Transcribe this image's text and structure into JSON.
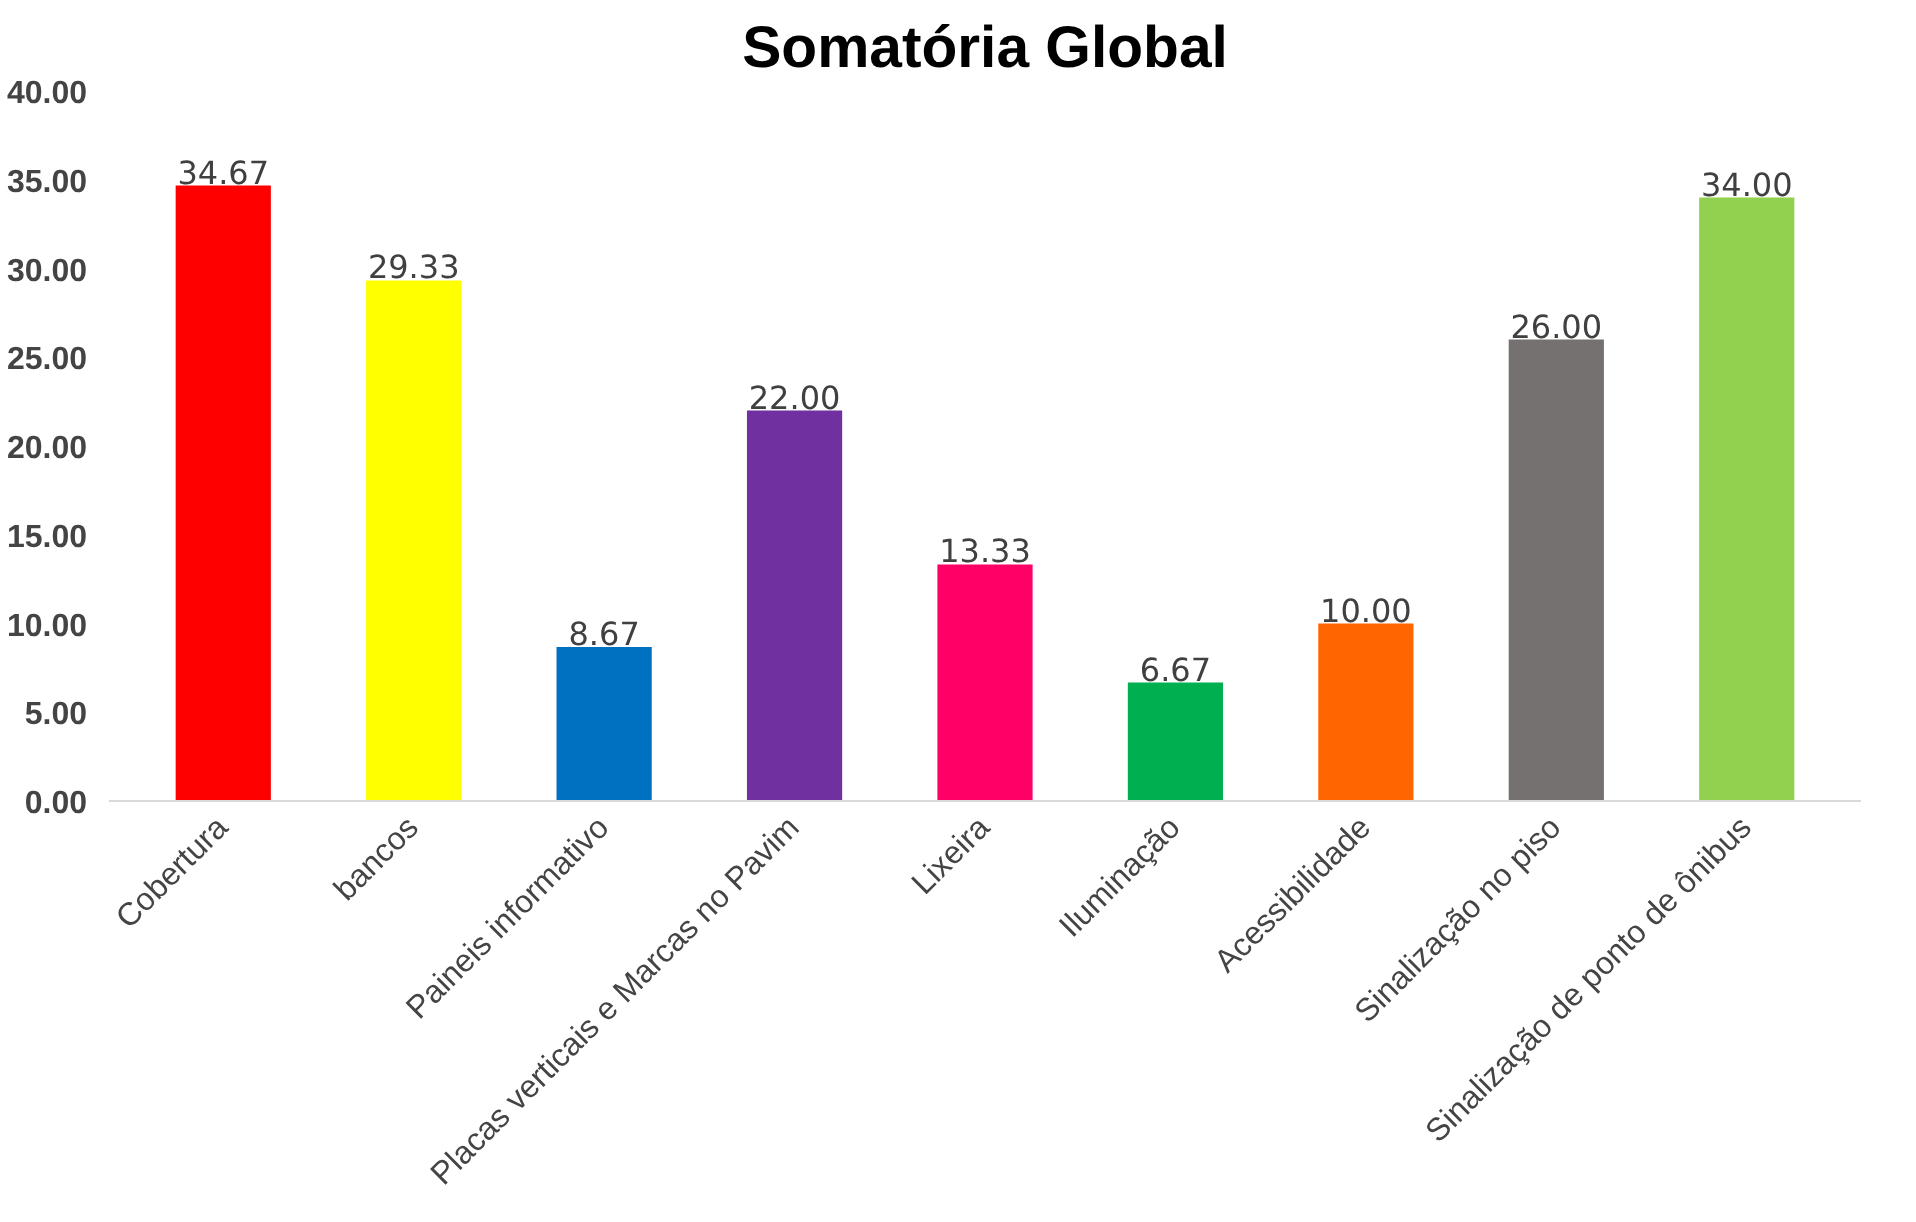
{
  "chart_data": {
    "type": "bar",
    "title": "Somatória Global",
    "categories": [
      "Cobertura",
      "bancos",
      "Paineis informativo",
      "Placas verticais e Marcas no Pavim",
      "Lixeira",
      "Iluminação",
      "Acessibilidade",
      "Sinalização no piso",
      "Sinalização de ponto de ônibus"
    ],
    "values": [
      34.67,
      29.33,
      8.67,
      22.0,
      13.33,
      6.67,
      10.0,
      26.0,
      34.0
    ],
    "value_labels": [
      "34.67",
      "29.33",
      "8.67",
      "22.00",
      "13.33",
      "6.67",
      "10.00",
      "26.00",
      "34.00"
    ],
    "colors": [
      "#ff0000",
      "#ffff00",
      "#0070c0",
      "#7030a0",
      "#ff0066",
      "#00b050",
      "#ff6600",
      "#767171",
      "#92d050"
    ],
    "ylim": [
      0,
      40
    ],
    "yticks": [
      {
        "value": 0,
        "label": "0.00"
      },
      {
        "value": 5,
        "label": "5.00"
      },
      {
        "value": 10,
        "label": "10.00"
      },
      {
        "value": 15,
        "label": "15.00"
      },
      {
        "value": 20,
        "label": "20.00"
      },
      {
        "value": 25,
        "label": "25.00"
      },
      {
        "value": 30,
        "label": "30.00"
      },
      {
        "value": 35,
        "label": "35.00"
      },
      {
        "value": 40,
        "label": "40.00"
      }
    ],
    "grid": false
  }
}
